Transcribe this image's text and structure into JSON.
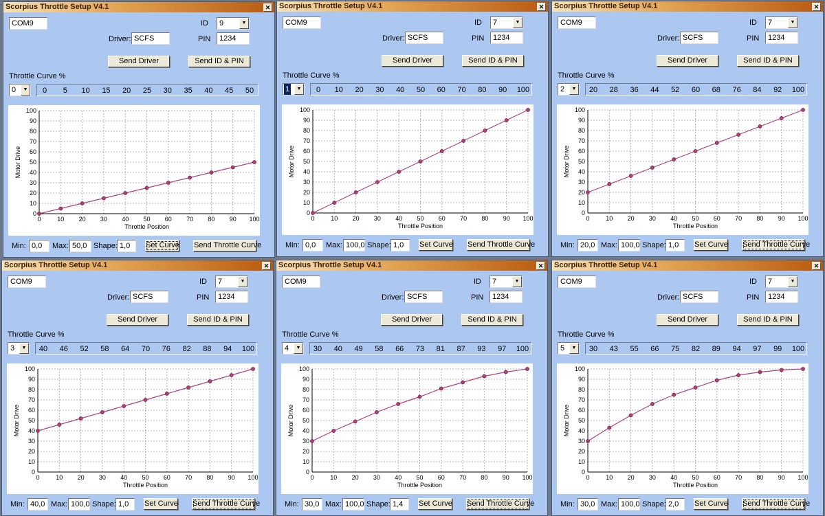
{
  "windows": [
    {
      "title": "Scorpius Throttle Setup V4.1",
      "port": "COM9",
      "id_label": "ID",
      "id_value": "9",
      "driver_label": "Driver:",
      "driver_value": "SCFS",
      "pin_label": "PIN",
      "pin_value": "1234",
      "send_driver_label": "Send Driver",
      "send_id_pin_label": "Send ID & PIN",
      "curve_label": "Throttle Curve %",
      "curve_index": "0",
      "curve_values": [
        "0",
        "5",
        "10",
        "15",
        "20",
        "25",
        "30",
        "35",
        "40",
        "45",
        "50"
      ],
      "min_label": "Min:",
      "min_value": "0,0",
      "max_label": "Max:",
      "max_value": "50,0",
      "shape_label": "Shape:",
      "shape_value": "1,0",
      "set_curve_label": "Set Curve",
      "send_curve_label": "Send Throttle Curve",
      "focused_button": "set"
    },
    {
      "title": "Scorpius Throttle Setup V4.1",
      "port": "COM9",
      "id_label": "ID",
      "id_value": "7",
      "driver_label": "Driver:",
      "driver_value": "SCFS",
      "pin_label": "PIN",
      "pin_value": "1234",
      "send_driver_label": "Send Driver",
      "send_id_pin_label": "Send ID & PIN",
      "curve_label": "Throttle Curve %",
      "curve_index": "1",
      "curve_values": [
        "0",
        "10",
        "20",
        "30",
        "40",
        "50",
        "60",
        "70",
        "80",
        "90",
        "100"
      ],
      "min_label": "Min:",
      "min_value": "0,0",
      "max_label": "Max:",
      "max_value": "100,0",
      "shape_label": "Shape:",
      "shape_value": "1,0",
      "set_curve_label": "Set Curve",
      "send_curve_label": "Send Throttle Curve",
      "focused_button": "none",
      "curve_index_selected": true
    },
    {
      "title": "Scorpius Throttle Setup V4.1",
      "port": "COM9",
      "id_label": "ID",
      "id_value": "7",
      "driver_label": "Driver:",
      "driver_value": "SCFS",
      "pin_label": "PIN",
      "pin_value": "1234",
      "send_driver_label": "Send Driver",
      "send_id_pin_label": "Send ID & PIN",
      "curve_label": "Throttle Curve %",
      "curve_index": "2",
      "curve_values": [
        "20",
        "28",
        "36",
        "44",
        "52",
        "60",
        "68",
        "76",
        "84",
        "92",
        "100"
      ],
      "min_label": "Min:",
      "min_value": "20,0",
      "max_label": "Max:",
      "max_value": "100,0",
      "shape_label": "Shape:",
      "shape_value": "1,0",
      "set_curve_label": "Set Curve",
      "send_curve_label": "Send Throttle Curve",
      "focused_button": "send"
    },
    {
      "title": "Scorpius Throttle Setup V4.1",
      "port": "COM9",
      "id_label": "ID",
      "id_value": "7",
      "driver_label": "Driver:",
      "driver_value": "SCFS",
      "pin_label": "PIN",
      "pin_value": "1234",
      "send_driver_label": "Send Driver",
      "send_id_pin_label": "Send ID & PIN",
      "curve_label": "Throttle Curve %",
      "curve_index": "3",
      "curve_values": [
        "40",
        "46",
        "52",
        "58",
        "64",
        "70",
        "76",
        "82",
        "88",
        "94",
        "100"
      ],
      "min_label": "Min:",
      "min_value": "40,0",
      "max_label": "Max:",
      "max_value": "100,0",
      "shape_label": "Shape:",
      "shape_value": "1,0",
      "set_curve_label": "Set Curve",
      "send_curve_label": "Send Throttle Curve",
      "focused_button": "send"
    },
    {
      "title": "Scorpius Throttle Setup V4.1",
      "port": "COM9",
      "id_label": "ID",
      "id_value": "7",
      "driver_label": "Driver:",
      "driver_value": "SCFS",
      "pin_label": "PIN",
      "pin_value": "1234",
      "send_driver_label": "Send Driver",
      "send_id_pin_label": "Send ID & PIN",
      "curve_label": "Throttle Curve %",
      "curve_index": "4",
      "curve_values": [
        "30",
        "40",
        "49",
        "58",
        "66",
        "73",
        "81",
        "87",
        "93",
        "97",
        "100"
      ],
      "min_label": "Min:",
      "min_value": "30,0",
      "max_label": "Max:",
      "max_value": "100,0",
      "shape_label": "Shape:",
      "shape_value": "1,4",
      "set_curve_label": "Set Curve",
      "send_curve_label": "Send Throttle Curve",
      "focused_button": "send"
    },
    {
      "title": "Scorpius Throttle Setup V4.1",
      "port": "COM9",
      "id_label": "ID",
      "id_value": "7",
      "driver_label": "Driver:",
      "driver_value": "SCFS",
      "pin_label": "PIN",
      "pin_value": "1234",
      "send_driver_label": "Send Driver",
      "send_id_pin_label": "Send ID & PIN",
      "curve_label": "Throttle Curve %",
      "curve_index": "5",
      "curve_values": [
        "30",
        "43",
        "55",
        "66",
        "75",
        "82",
        "89",
        "94",
        "97",
        "99",
        "100"
      ],
      "min_label": "Min:",
      "min_value": "30,0",
      "max_label": "Max:",
      "max_value": "100,0",
      "shape_label": "Shape:",
      "shape_value": "2,0",
      "set_curve_label": "Set Curve",
      "send_curve_label": "Send Throttle Curve",
      "focused_button": "send"
    }
  ],
  "chart_data": [
    {
      "type": "line",
      "xlabel": "Throttle Position",
      "ylabel": "Motor Drive",
      "xlim": [
        0,
        100
      ],
      "ylim": [
        0,
        100
      ],
      "grid": true,
      "x": [
        0,
        10,
        20,
        30,
        40,
        50,
        60,
        70,
        80,
        90,
        100
      ],
      "series": [
        {
          "values": [
            0,
            5,
            10,
            15,
            20,
            25,
            30,
            35,
            40,
            45,
            50
          ]
        }
      ],
      "ticks": [
        0,
        10,
        20,
        30,
        40,
        50,
        60,
        70,
        80,
        90,
        100
      ]
    },
    {
      "type": "line",
      "xlabel": "Throttle Position",
      "ylabel": "Motor Drive",
      "xlim": [
        0,
        100
      ],
      "ylim": [
        0,
        100
      ],
      "grid": true,
      "x": [
        0,
        10,
        20,
        30,
        40,
        50,
        60,
        70,
        80,
        90,
        100
      ],
      "series": [
        {
          "values": [
            0,
            10,
            20,
            30,
            40,
            50,
            60,
            70,
            80,
            90,
            100
          ]
        }
      ],
      "ticks": [
        0,
        10,
        20,
        30,
        40,
        50,
        60,
        70,
        80,
        90,
        100
      ]
    },
    {
      "type": "line",
      "xlabel": "Throttle Position",
      "ylabel": "Motor Drive",
      "xlim": [
        0,
        100
      ],
      "ylim": [
        0,
        100
      ],
      "grid": true,
      "x": [
        0,
        10,
        20,
        30,
        40,
        50,
        60,
        70,
        80,
        90,
        100
      ],
      "series": [
        {
          "values": [
            20,
            28,
            36,
            44,
            52,
            60,
            68,
            76,
            84,
            92,
            100
          ]
        }
      ],
      "ticks": [
        0,
        10,
        20,
        30,
        40,
        50,
        60,
        70,
        80,
        90,
        100
      ]
    },
    {
      "type": "line",
      "xlabel": "Throttle Position",
      "ylabel": "Motor Drive",
      "xlim": [
        0,
        100
      ],
      "ylim": [
        0,
        100
      ],
      "grid": true,
      "x": [
        0,
        10,
        20,
        30,
        40,
        50,
        60,
        70,
        80,
        90,
        100
      ],
      "series": [
        {
          "values": [
            40,
            46,
            52,
            58,
            64,
            70,
            76,
            82,
            88,
            94,
            100
          ]
        }
      ],
      "ticks": [
        0,
        10,
        20,
        30,
        40,
        50,
        60,
        70,
        80,
        90,
        100
      ]
    },
    {
      "type": "line",
      "xlabel": "Throttle Position",
      "ylabel": "Motor Drive",
      "xlim": [
        0,
        100
      ],
      "ylim": [
        0,
        100
      ],
      "grid": true,
      "x": [
        0,
        10,
        20,
        30,
        40,
        50,
        60,
        70,
        80,
        90,
        100
      ],
      "series": [
        {
          "values": [
            30,
            40,
            49,
            58,
            66,
            73,
            81,
            87,
            93,
            97,
            100
          ]
        }
      ],
      "ticks": [
        0,
        10,
        20,
        30,
        40,
        50,
        60,
        70,
        80,
        90,
        100
      ]
    },
    {
      "type": "line",
      "xlabel": "Throttle Position",
      "ylabel": "Motor Drive",
      "xlim": [
        0,
        100
      ],
      "ylim": [
        0,
        100
      ],
      "grid": true,
      "x": [
        0,
        10,
        20,
        30,
        40,
        50,
        60,
        70,
        80,
        90,
        100
      ],
      "series": [
        {
          "values": [
            30,
            43,
            55,
            66,
            75,
            82,
            89,
            94,
            97,
            99,
            100
          ]
        }
      ],
      "ticks": [
        0,
        10,
        20,
        30,
        40,
        50,
        60,
        70,
        80,
        90,
        100
      ]
    }
  ],
  "colors": {
    "window_bg": "#acc8f0",
    "curve_line": "#b0407a",
    "point_fill": "#b0407a",
    "grid": "#b4b4b4"
  }
}
